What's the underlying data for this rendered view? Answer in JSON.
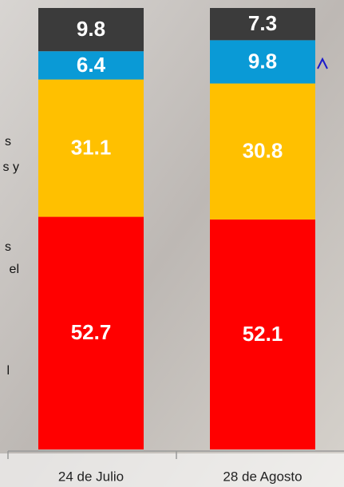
{
  "chart_data": {
    "type": "stacked-bar",
    "categories": [
      "24 de Julio",
      "28 de Agosto"
    ],
    "series": [
      {
        "color": "#ff0000",
        "values": [
          52.7,
          52.1
        ]
      },
      {
        "color": "#ffc000",
        "values": [
          31.1,
          30.8
        ]
      },
      {
        "color": "#0a9ad6",
        "values": [
          6.4,
          9.8
        ]
      },
      {
        "color": "#3b3b3b",
        "values": [
          9.8,
          7.3
        ]
      }
    ],
    "ylim": [
      0,
      100
    ]
  },
  "side_fragments": [
    "s",
    "s y",
    "s",
    "el",
    "l"
  ]
}
